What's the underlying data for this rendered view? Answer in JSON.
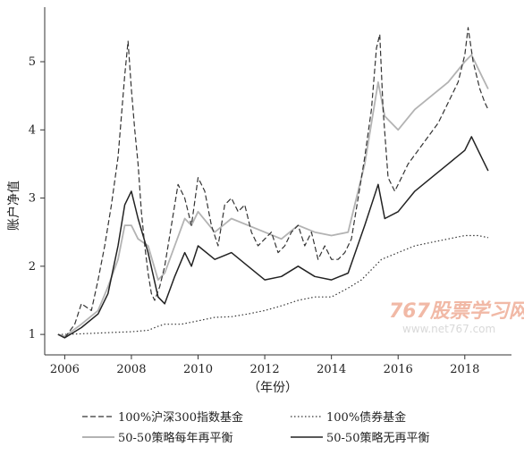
{
  "chart_data": {
    "type": "line",
    "ylabel": "账户净值",
    "xlabel": "（年份）",
    "xlim": [
      2005.4,
      2019.4
    ],
    "ylim": [
      0.7,
      5.8
    ],
    "xticks": [
      2006,
      2008,
      2010,
      2012,
      2014,
      2016,
      2018
    ],
    "xtick_labels": [
      "2006",
      "2008",
      "2010",
      "2012",
      "2014",
      "2016",
      "2018"
    ],
    "yticks": [
      1,
      2,
      3,
      4,
      5
    ],
    "ytick_labels": [
      "1",
      "2",
      "3",
      "4",
      "5"
    ],
    "grid": false,
    "legend_position": "bottom",
    "watermark": {
      "main": "767股票学习网",
      "sub": "www.net767.com"
    },
    "series": [
      {
        "name": "100%沪深300指数基金",
        "style": "dashed",
        "color": "#333333",
        "x": [
          2005.8,
          2006.0,
          2006.3,
          2006.5,
          2006.8,
          2007.0,
          2007.2,
          2007.4,
          2007.6,
          2007.8,
          2007.9,
          2008.0,
          2008.1,
          2008.2,
          2008.3,
          2008.4,
          2008.5,
          2008.6,
          2008.7,
          2008.85,
          2009.0,
          2009.2,
          2009.4,
          2009.6,
          2009.8,
          2010.0,
          2010.2,
          2010.4,
          2010.6,
          2010.8,
          2011.0,
          2011.2,
          2011.4,
          2011.6,
          2011.8,
          2012.0,
          2012.2,
          2012.4,
          2012.6,
          2012.8,
          2013.0,
          2013.2,
          2013.4,
          2013.6,
          2013.8,
          2014.0,
          2014.2,
          2014.4,
          2014.6,
          2014.8,
          2015.0,
          2015.2,
          2015.35,
          2015.45,
          2015.55,
          2015.7,
          2015.9,
          2016.1,
          2016.3,
          2016.6,
          2016.9,
          2017.2,
          2017.5,
          2017.8,
          2018.0,
          2018.1,
          2018.25,
          2018.45,
          2018.6,
          2018.7
        ],
        "y": [
          1.0,
          0.95,
          1.15,
          1.45,
          1.35,
          1.8,
          2.3,
          2.9,
          3.6,
          4.8,
          5.3,
          4.6,
          4.0,
          3.5,
          2.8,
          2.3,
          1.9,
          1.6,
          1.5,
          1.7,
          2.0,
          2.6,
          3.2,
          3.0,
          2.6,
          3.3,
          3.1,
          2.6,
          2.3,
          2.9,
          3.0,
          2.8,
          2.9,
          2.5,
          2.3,
          2.4,
          2.5,
          2.2,
          2.3,
          2.5,
          2.6,
          2.3,
          2.5,
          2.1,
          2.3,
          2.1,
          2.1,
          2.2,
          2.4,
          3.0,
          3.6,
          4.3,
          5.2,
          5.4,
          4.3,
          3.3,
          3.1,
          3.3,
          3.5,
          3.7,
          3.9,
          4.1,
          4.4,
          4.7,
          5.1,
          5.5,
          5.0,
          4.6,
          4.4,
          4.3
        ]
      },
      {
        "name": "100%债券基金",
        "style": "dotted",
        "color": "#333333",
        "x": [
          2005.8,
          2006.0,
          2006.5,
          2007.0,
          2007.5,
          2008.0,
          2008.5,
          2008.8,
          2009.0,
          2009.5,
          2010.0,
          2010.5,
          2011.0,
          2011.5,
          2012.0,
          2012.5,
          2013.0,
          2013.5,
          2014.0,
          2014.5,
          2014.9,
          2015.2,
          2015.5,
          2016.0,
          2016.5,
          2017.0,
          2017.5,
          2018.0,
          2018.4,
          2018.7
        ],
        "y": [
          1.0,
          1.0,
          1.01,
          1.02,
          1.03,
          1.04,
          1.06,
          1.12,
          1.15,
          1.15,
          1.2,
          1.25,
          1.26,
          1.3,
          1.35,
          1.42,
          1.5,
          1.55,
          1.55,
          1.68,
          1.8,
          1.95,
          2.1,
          2.2,
          2.3,
          2.35,
          2.4,
          2.45,
          2.45,
          2.42
        ]
      },
      {
        "name": "50-50策略每年再平衡",
        "style": "solid",
        "color": "#b3b3b3",
        "x": [
          2005.8,
          2006.0,
          2006.5,
          2007.0,
          2007.3,
          2007.6,
          2007.8,
          2008.0,
          2008.2,
          2008.5,
          2008.8,
          2009.0,
          2009.3,
          2009.6,
          2009.8,
          2010.0,
          2010.5,
          2011.0,
          2011.5,
          2012.0,
          2012.5,
          2013.0,
          2013.5,
          2014.0,
          2014.5,
          2015.0,
          2015.4,
          2015.6,
          2016.0,
          2016.5,
          2017.0,
          2017.5,
          2018.0,
          2018.2,
          2018.5,
          2018.7
        ],
        "y": [
          1.0,
          0.97,
          1.15,
          1.35,
          1.7,
          2.1,
          2.6,
          2.6,
          2.4,
          2.3,
          1.8,
          1.9,
          2.3,
          2.7,
          2.6,
          2.8,
          2.5,
          2.7,
          2.6,
          2.5,
          2.4,
          2.6,
          2.5,
          2.45,
          2.5,
          3.5,
          4.7,
          4.2,
          4.0,
          4.3,
          4.5,
          4.7,
          5.0,
          5.1,
          4.8,
          4.6
        ]
      },
      {
        "name": "50-50策略无再平衡",
        "style": "solid",
        "color": "#222222",
        "x": [
          2005.8,
          2006.0,
          2006.5,
          2007.0,
          2007.3,
          2007.6,
          2007.8,
          2008.0,
          2008.2,
          2008.5,
          2008.8,
          2009.0,
          2009.3,
          2009.6,
          2009.8,
          2010.0,
          2010.5,
          2011.0,
          2011.5,
          2012.0,
          2012.5,
          2013.0,
          2013.5,
          2014.0,
          2014.5,
          2015.0,
          2015.4,
          2015.6,
          2016.0,
          2016.5,
          2017.0,
          2017.5,
          2018.0,
          2018.2,
          2018.5,
          2018.7
        ],
        "y": [
          1.0,
          0.95,
          1.1,
          1.3,
          1.6,
          2.3,
          2.9,
          3.1,
          2.7,
          2.2,
          1.55,
          1.45,
          1.85,
          2.2,
          2.0,
          2.3,
          2.1,
          2.2,
          2.0,
          1.8,
          1.85,
          2.0,
          1.85,
          1.8,
          1.9,
          2.6,
          3.2,
          2.7,
          2.8,
          3.1,
          3.3,
          3.5,
          3.7,
          3.9,
          3.6,
          3.4
        ]
      }
    ]
  }
}
